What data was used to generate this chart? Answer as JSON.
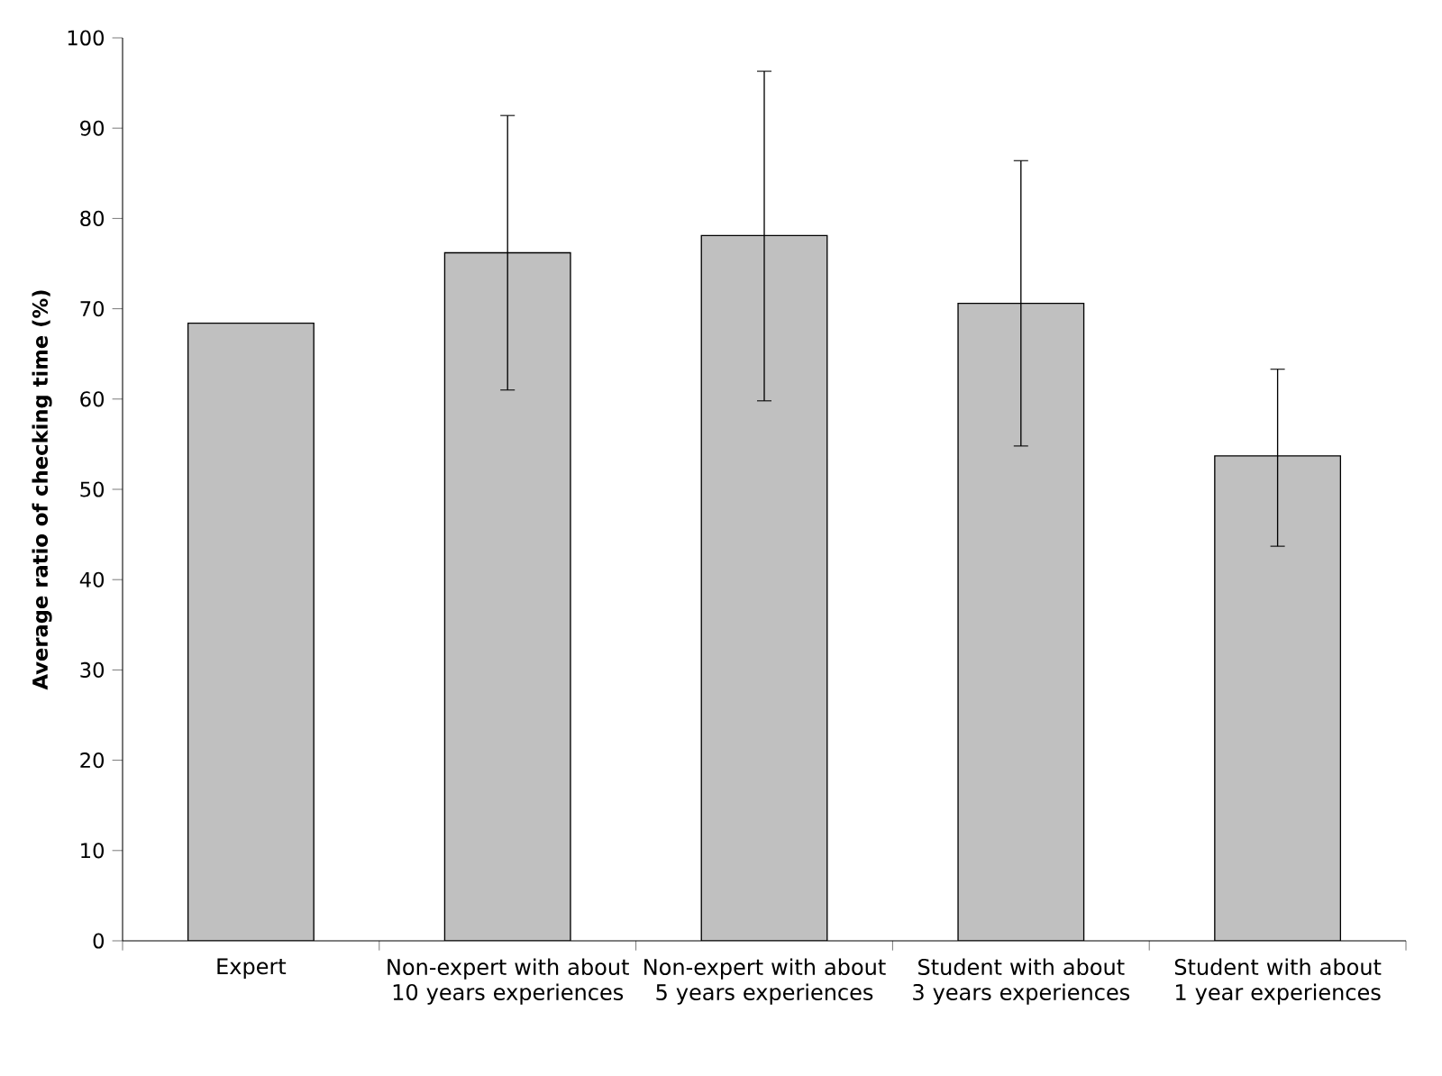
{
  "chart_data": {
    "type": "bar",
    "ylabel": "Average ratio of checking time (%)",
    "categories": [
      "Expert",
      "Non-expert with about 10 years experiences",
      "Non-expert with about 5 years experiences",
      "Student with about 3 years experiences",
      "Student with about 1 year experiences"
    ],
    "values": [
      68.4,
      76.2,
      78.1,
      70.6,
      53.7
    ],
    "errors": [
      null,
      [
        61.0,
        91.4
      ],
      [
        59.8,
        96.3
      ],
      [
        54.8,
        86.4
      ],
      [
        43.7,
        63.3
      ]
    ],
    "color": "#c0c0c0",
    "ylim": [
      0,
      100
    ],
    "yticks": [
      0,
      10,
      20,
      30,
      40,
      50,
      60,
      70,
      80,
      90,
      100
    ],
    "grid": false
  }
}
